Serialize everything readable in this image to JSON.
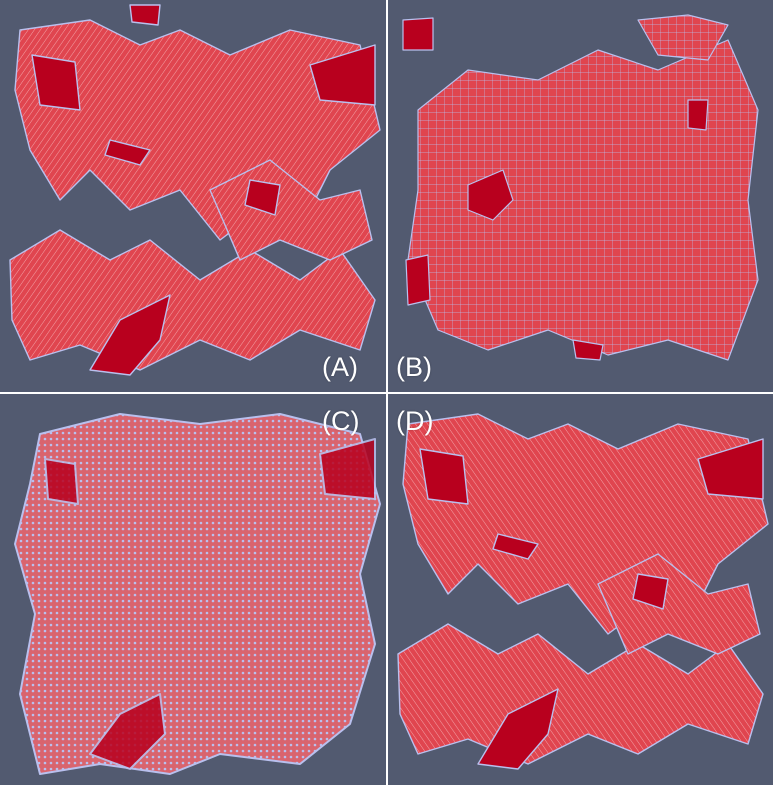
{
  "panels": [
    {
      "label": "(A)"
    },
    {
      "label": "(B)"
    },
    {
      "label": "(C)"
    },
    {
      "label": "(D)"
    }
  ],
  "colors": {
    "background": "#525a70",
    "fragment_fill": "#e0454f",
    "dense_fill": "#b8001e",
    "boundary": "#b9c0ee",
    "porous_fill": "#d9646e",
    "label": "#ffffff"
  }
}
